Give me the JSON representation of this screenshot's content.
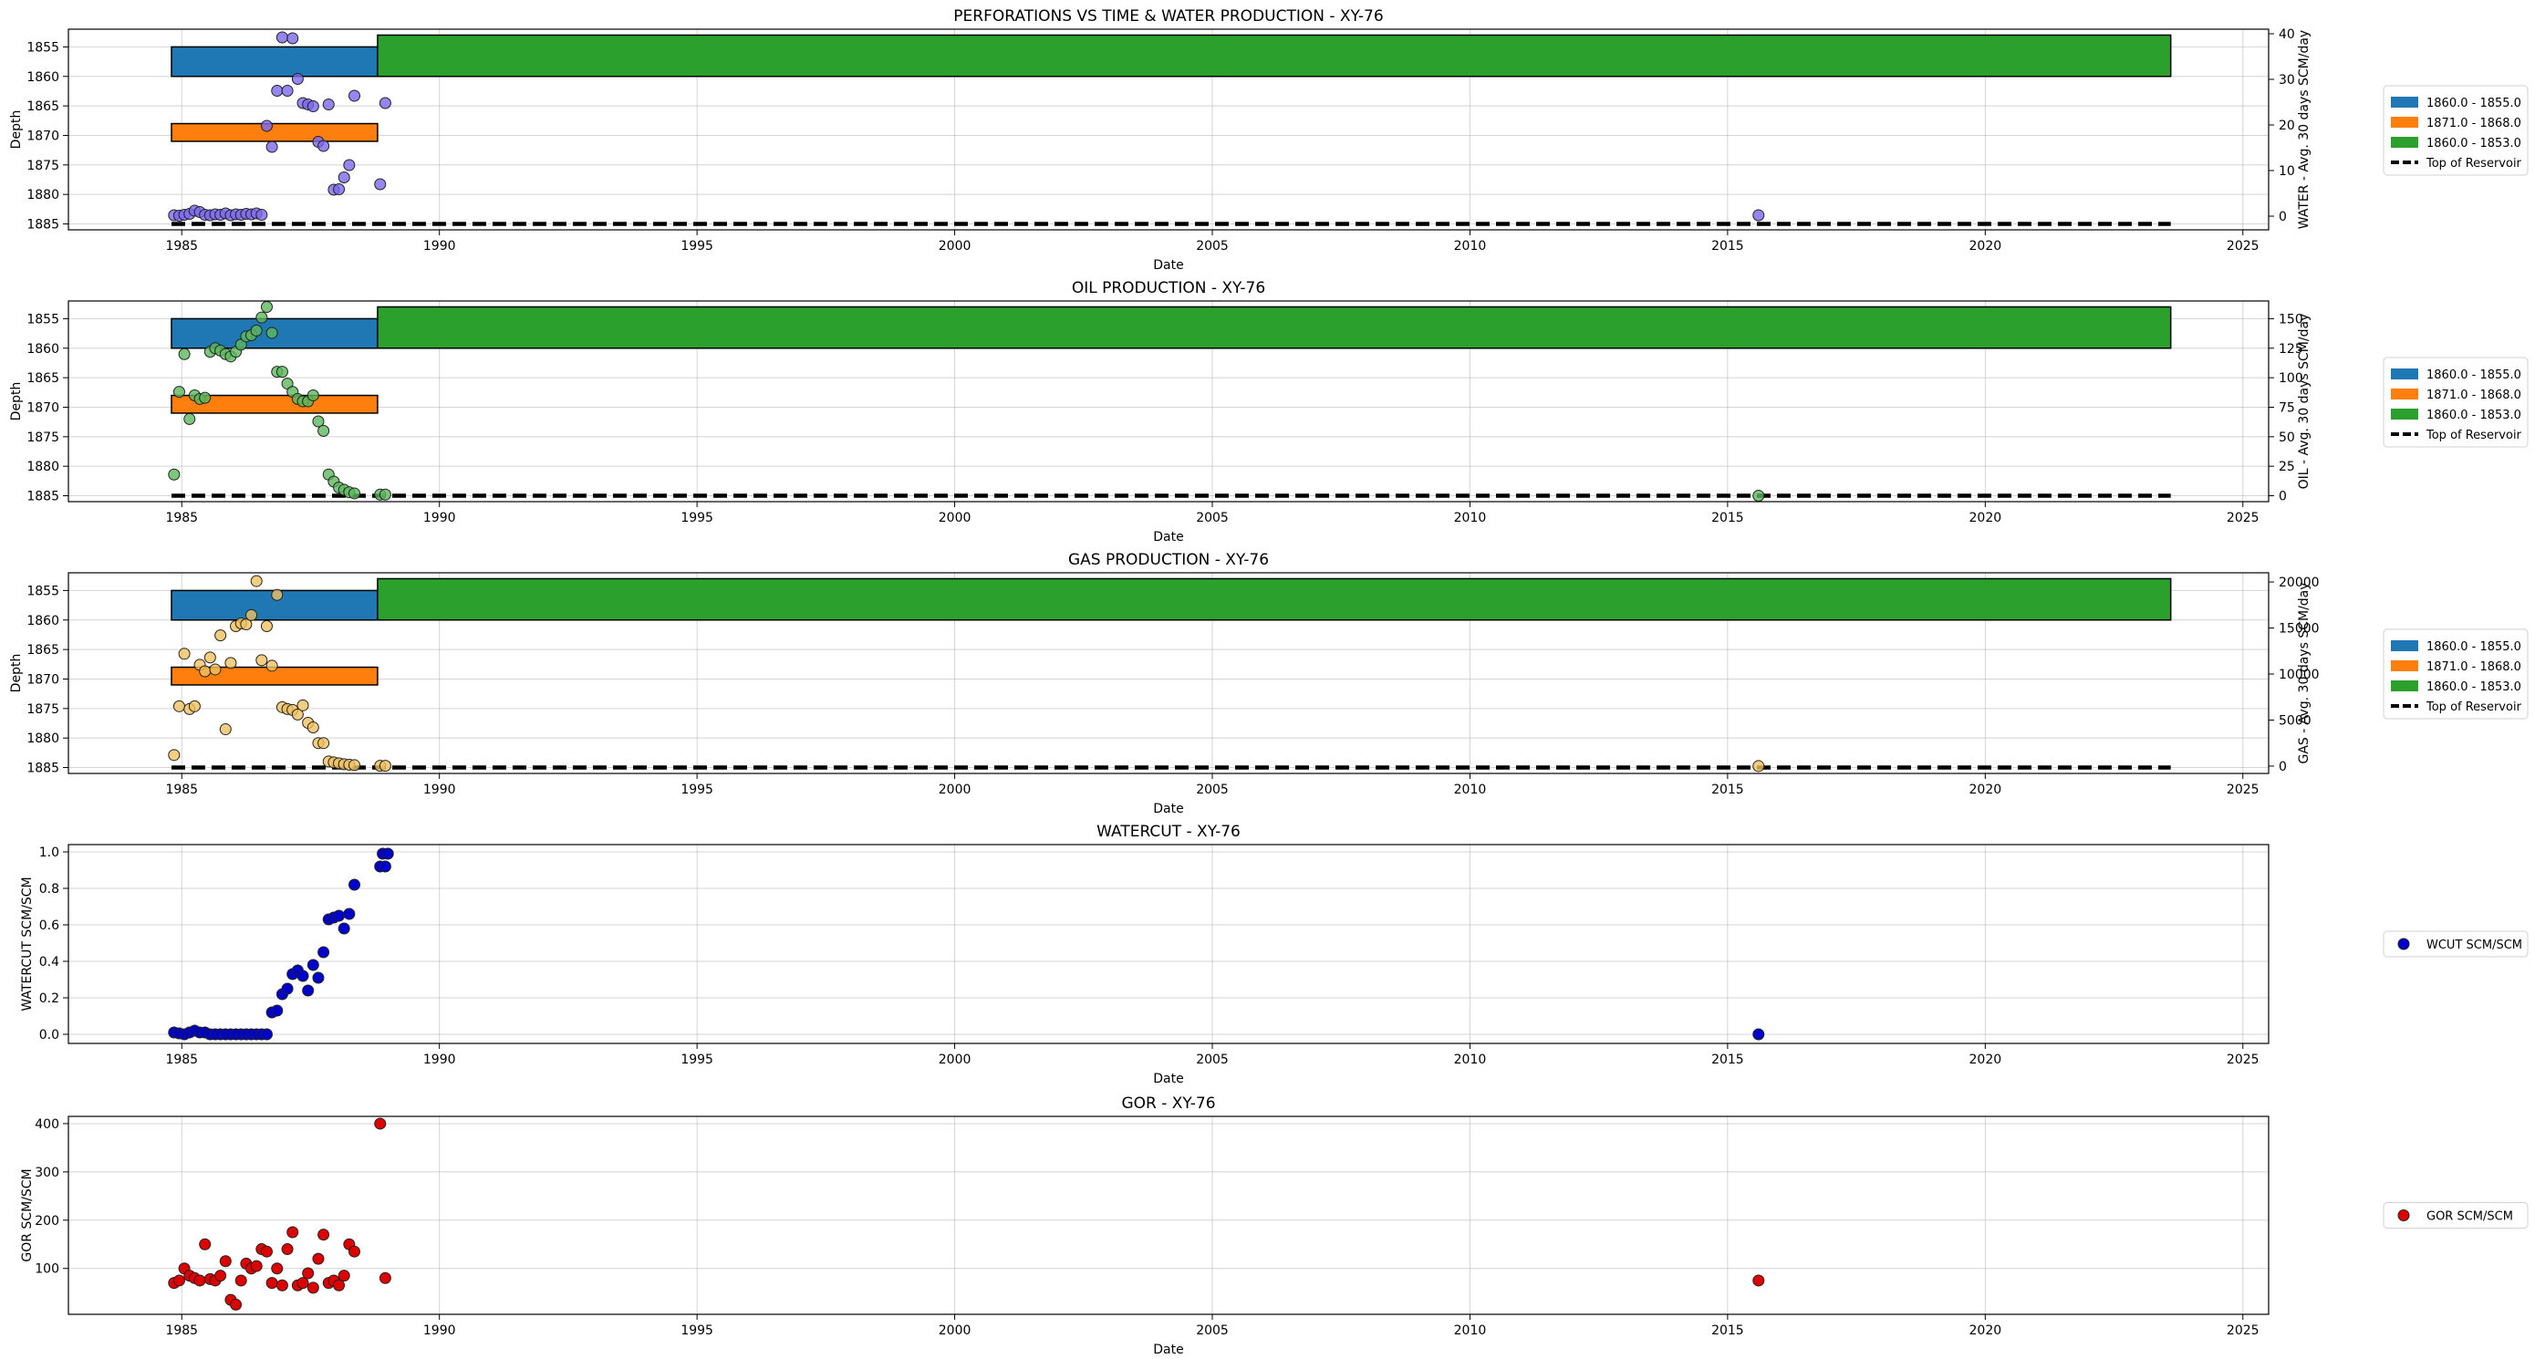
{
  "colors": {
    "perf_blue": "#1f77b4",
    "perf_orange": "#ff7f0e",
    "perf_green": "#2ca02c",
    "water": "#7b68ee",
    "oil": "#5cb85c",
    "gas": "#f0c060",
    "wcut": "#0000cc",
    "gor": "#dd0000"
  },
  "chart_data": [
    {
      "type": "scatter",
      "title": "PERFORATIONS VS TIME & WATER PRODUCTION - XY-76",
      "xlabel": "Date",
      "ylabel": "Depth",
      "y2label": "WATER - Avg. 30 days SCM/day",
      "xlim": [
        1982.8,
        2025.5
      ],
      "ylim_depth": [
        1886,
        1852
      ],
      "ylim2": [
        -3,
        41
      ],
      "x_ticks": [
        "1985",
        "1990",
        "1995",
        "2000",
        "2005",
        "2010",
        "2015",
        "2020",
        "2025"
      ],
      "y_ticks": [
        "1855",
        "1860",
        "1865",
        "1870",
        "1875",
        "1880",
        "1885"
      ],
      "y2_ticks": [
        "0",
        "10",
        "20",
        "30",
        "40"
      ],
      "perforations": [
        {
          "label": "1860.0 - 1855.0",
          "start": 1984.8,
          "end": 1988.8,
          "top": 1855.0,
          "bottom": 1860.0,
          "color": "#1f77b4"
        },
        {
          "label": "1871.0 - 1868.0",
          "start": 1984.8,
          "end": 1988.8,
          "top": 1868.0,
          "bottom": 1871.0,
          "color": "#ff7f0e"
        },
        {
          "label": "1860.0 - 1853.0",
          "start": 1988.8,
          "end": 2023.6,
          "top": 1853.0,
          "bottom": 1860.0,
          "color": "#2ca02c"
        }
      ],
      "top_of_reservoir": {
        "label": "Top of Reservoir",
        "depth": 1885,
        "start": 1984.8,
        "end": 2023.6
      },
      "series": [
        {
          "name": "WATER",
          "x": [
            1984.85,
            1984.95,
            1985.05,
            1985.15,
            1985.25,
            1985.35,
            1985.45,
            1985.55,
            1985.65,
            1985.75,
            1985.85,
            1985.95,
            1986.05,
            1986.15,
            1986.25,
            1986.35,
            1986.45,
            1986.55,
            1986.65,
            1986.75,
            1986.85,
            1986.95,
            1987.05,
            1987.15,
            1987.25,
            1987.35,
            1987.45,
            1987.55,
            1987.65,
            1987.75,
            1987.85,
            1987.95,
            1988.05,
            1988.15,
            1988.25,
            1988.35,
            1988.85,
            1988.95,
            2015.6
          ],
          "y": [
            0.2,
            0.1,
            0.3,
            0.5,
            1.2,
            0.9,
            0.3,
            0.2,
            0.4,
            0.3,
            0.6,
            0.2,
            0.4,
            0.3,
            0.5,
            0.4,
            0.6,
            0.3,
            19.8,
            15.2,
            27.5,
            39.2,
            27.5,
            39,
            30.1,
            24.8,
            24.5,
            24.1,
            16.3,
            15.4,
            24.5,
            5.8,
            5.9,
            8.5,
            11.2,
            26.4,
            7.0,
            24.8,
            0.2
          ]
        }
      ]
    },
    {
      "type": "scatter",
      "title": "OIL PRODUCTION - XY-76",
      "xlabel": "Date",
      "ylabel": "Depth",
      "y2label": "OIL - Avg. 30 days SCM/day",
      "xlim": [
        1982.8,
        2025.5
      ],
      "ylim_depth": [
        1886,
        1852
      ],
      "ylim2": [
        -5,
        165
      ],
      "x_ticks": [
        "1985",
        "1990",
        "1995",
        "2000",
        "2005",
        "2010",
        "2015",
        "2020",
        "2025"
      ],
      "y_ticks": [
        "1855",
        "1860",
        "1865",
        "1870",
        "1875",
        "1880",
        "1885"
      ],
      "y2_ticks": [
        "0",
        "25",
        "50",
        "75",
        "100",
        "125",
        "150"
      ],
      "perforations": [
        {
          "label": "1860.0 - 1855.0",
          "start": 1984.8,
          "end": 1988.8,
          "top": 1855.0,
          "bottom": 1860.0,
          "color": "#1f77b4"
        },
        {
          "label": "1871.0 - 1868.0",
          "start": 1984.8,
          "end": 1988.8,
          "top": 1868.0,
          "bottom": 1871.0,
          "color": "#ff7f0e"
        },
        {
          "label": "1860.0 - 1853.0",
          "start": 1988.8,
          "end": 2023.6,
          "top": 1853.0,
          "bottom": 1860.0,
          "color": "#2ca02c"
        }
      ],
      "top_of_reservoir": {
        "label": "Top of Reservoir",
        "depth": 1885,
        "start": 1984.8,
        "end": 2023.6
      },
      "series": [
        {
          "name": "OIL",
          "x": [
            1984.85,
            1984.95,
            1985.05,
            1985.15,
            1985.25,
            1985.35,
            1985.45,
            1985.55,
            1985.65,
            1985.75,
            1985.85,
            1985.95,
            1986.05,
            1986.15,
            1986.25,
            1986.35,
            1986.45,
            1986.55,
            1986.65,
            1986.75,
            1986.85,
            1986.95,
            1987.05,
            1987.15,
            1987.25,
            1987.35,
            1987.45,
            1987.55,
            1987.65,
            1987.75,
            1987.85,
            1987.95,
            1988.05,
            1988.15,
            1988.25,
            1988.35,
            1988.85,
            1988.95,
            2015.6
          ],
          "y": [
            18,
            88,
            120,
            65,
            85,
            82,
            83,
            122,
            125,
            123,
            120,
            118,
            122,
            128,
            135,
            136,
            140,
            151,
            160,
            138,
            105,
            105,
            95,
            88,
            82,
            80,
            80,
            85,
            63,
            55,
            18,
            12,
            7,
            5,
            3,
            2,
            1,
            1,
            0
          ]
        }
      ]
    },
    {
      "type": "scatter",
      "title": "GAS PRODUCTION - XY-76",
      "xlabel": "Date",
      "ylabel": "Depth",
      "y2label": "GAS - Avg. 30 days SCM/day",
      "xlim": [
        1982.8,
        2025.5
      ],
      "ylim_depth": [
        1886,
        1852
      ],
      "ylim2": [
        -800,
        21000
      ],
      "x_ticks": [
        "1985",
        "1990",
        "1995",
        "2000",
        "2005",
        "2010",
        "2015",
        "2020",
        "2025"
      ],
      "y_ticks": [
        "1855",
        "1860",
        "1865",
        "1870",
        "1875",
        "1880",
        "1885"
      ],
      "y2_ticks": [
        "0",
        "5000",
        "10000",
        "15000",
        "20000"
      ],
      "perforations": [
        {
          "label": "1860.0 - 1855.0",
          "start": 1984.8,
          "end": 1988.8,
          "top": 1855.0,
          "bottom": 1860.0,
          "color": "#1f77b4"
        },
        {
          "label": "1871.0 - 1868.0",
          "start": 1984.8,
          "end": 1988.8,
          "top": 1868.0,
          "bottom": 1871.0,
          "color": "#ff7f0e"
        },
        {
          "label": "1860.0 - 1853.0",
          "start": 1988.8,
          "end": 2023.6,
          "top": 1853.0,
          "bottom": 1860.0,
          "color": "#2ca02c"
        }
      ],
      "top_of_reservoir": {
        "label": "Top of Reservoir",
        "depth": 1885,
        "start": 1984.8,
        "end": 2023.6
      },
      "series": [
        {
          "name": "GAS",
          "x": [
            1984.85,
            1984.95,
            1985.05,
            1985.15,
            1985.25,
            1985.35,
            1985.45,
            1985.55,
            1985.65,
            1985.75,
            1985.85,
            1985.95,
            1986.05,
            1986.15,
            1986.25,
            1986.35,
            1986.45,
            1986.55,
            1986.65,
            1986.75,
            1986.85,
            1986.95,
            1987.05,
            1987.15,
            1987.25,
            1987.35,
            1987.45,
            1987.55,
            1987.65,
            1987.75,
            1987.85,
            1987.95,
            1988.05,
            1988.15,
            1988.25,
            1988.35,
            1988.85,
            1988.95,
            2015.6
          ],
          "y": [
            1200,
            6500,
            12200,
            6200,
            6500,
            11000,
            10300,
            11800,
            10500,
            14200,
            4000,
            11200,
            15200,
            15500,
            15400,
            16400,
            20100,
            11500,
            15200,
            10900,
            18600,
            6400,
            6200,
            6100,
            5600,
            6600,
            4700,
            4200,
            2500,
            2500,
            500,
            400,
            300,
            200,
            150,
            100,
            30,
            30,
            0
          ]
        }
      ]
    },
    {
      "type": "scatter",
      "title": "WATERCUT - XY-76",
      "xlabel": "Date",
      "ylabel": "WATERCUT SCM/SCM",
      "xlim": [
        1982.8,
        2025.5
      ],
      "ylim": [
        -0.05,
        1.04
      ],
      "x_ticks": [
        "1985",
        "1990",
        "1995",
        "2000",
        "2005",
        "2010",
        "2015",
        "2020",
        "2025"
      ],
      "y_ticks": [
        "0.0",
        "0.2",
        "0.4",
        "0.6",
        "0.8",
        "1.0"
      ],
      "legend": "WCUT SCM/SCM",
      "series": [
        {
          "name": "WCUT SCM/SCM",
          "x": [
            1984.85,
            1984.95,
            1985.05,
            1985.15,
            1985.25,
            1985.35,
            1985.45,
            1985.55,
            1985.65,
            1985.75,
            1985.85,
            1985.95,
            1986.05,
            1986.15,
            1986.25,
            1986.35,
            1986.45,
            1986.55,
            1986.65,
            1986.75,
            1986.85,
            1986.95,
            1987.05,
            1987.15,
            1987.25,
            1987.35,
            1987.45,
            1987.55,
            1987.65,
            1987.75,
            1987.85,
            1987.95,
            1988.05,
            1988.15,
            1988.25,
            1988.35,
            1988.85,
            1988.95,
            2015.6
          ],
          "y": [
            0.01,
            0.005,
            0.0,
            0.01,
            0.02,
            0.01,
            0.01,
            0.0,
            0.0,
            0.0,
            0.0,
            0.0,
            0.0,
            0.0,
            0.0,
            0.0,
            0.0,
            0.0,
            0.0,
            0.12,
            0.13,
            0.22,
            0.25,
            0.33,
            0.35,
            0.32,
            0.24,
            0.38,
            0.31,
            0.45,
            0.63,
            0.64,
            0.65,
            0.58,
            0.66,
            0.82,
            0.92,
            0.92,
            0.0
          ]
        },
        {
          "name": "extra",
          "x": [
            1988.9,
            1989.0
          ],
          "y": [
            0.99,
            0.99
          ]
        }
      ]
    },
    {
      "type": "scatter",
      "title": "GOR - XY-76",
      "xlabel": "Date",
      "ylabel": "GOR SCM/SCM",
      "xlim": [
        1982.8,
        2025.5
      ],
      "ylim": [
        5,
        415
      ],
      "x_ticks": [
        "1985",
        "1990",
        "1995",
        "2000",
        "2005",
        "2010",
        "2015",
        "2020",
        "2025"
      ],
      "y_ticks": [
        "100",
        "200",
        "300",
        "400"
      ],
      "legend": "GOR SCM/SCM",
      "series": [
        {
          "name": "GOR SCM/SCM",
          "x": [
            1984.85,
            1984.95,
            1985.05,
            1985.15,
            1985.25,
            1985.35,
            1985.45,
            1985.55,
            1985.65,
            1985.75,
            1985.85,
            1985.95,
            1986.05,
            1986.15,
            1986.25,
            1986.35,
            1986.45,
            1986.55,
            1986.65,
            1986.75,
            1986.85,
            1986.95,
            1987.05,
            1987.15,
            1987.25,
            1987.35,
            1987.45,
            1987.55,
            1987.65,
            1987.75,
            1987.85,
            1987.95,
            1988.05,
            1988.15,
            1988.25,
            1988.35,
            1988.85,
            1988.95,
            2015.6
          ],
          "y": [
            70,
            75,
            100,
            85,
            80,
            75,
            150,
            78,
            75,
            85,
            115,
            35,
            25,
            75,
            110,
            100,
            105,
            140,
            135,
            70,
            100,
            65,
            140,
            175,
            65,
            70,
            90,
            60,
            120,
            170,
            70,
            75,
            65,
            85,
            150,
            135,
            400,
            80,
            75
          ]
        }
      ]
    }
  ]
}
